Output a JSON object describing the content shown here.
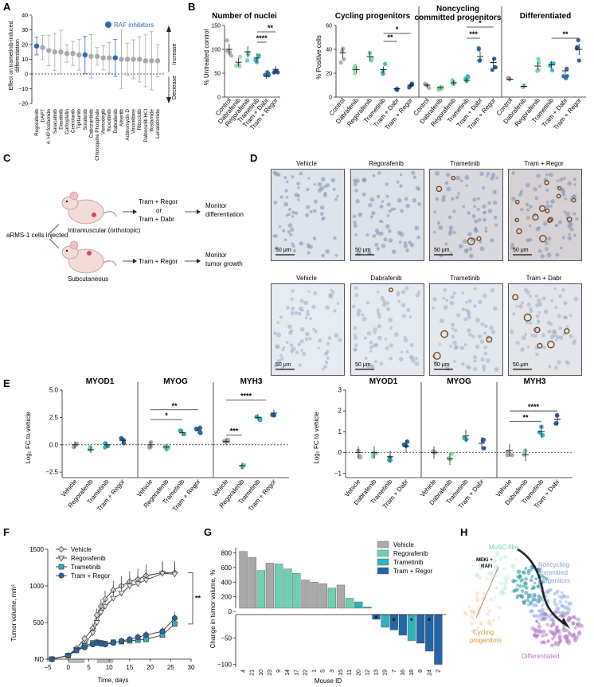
{
  "colors": {
    "gray": "#a9a9a9",
    "light_green": "#8fd8a6",
    "mint": "#6fcfb2",
    "teal": "#2fb2bd",
    "blue": "#2465a8",
    "navy": "#1f4e8c",
    "raf_blue": "#2e68b8",
    "purple": "#8a63b5",
    "orange": "#e2932e"
  },
  "panels": {
    "A": {
      "letter": "A",
      "ylabel_line1": "Effect on trametinib-induced",
      "ylabel_line2": "differentiation",
      "legend": "RAF inhibitors",
      "increase": "Increase",
      "decrease": "Decrease",
      "ticks": [
        "40",
        "30",
        "20",
        "10",
        "0",
        "−10",
        "−20"
      ],
      "drugs": [
        "Regorafenib",
        "DAPT",
        "4- HP fosfamide",
        "Saracatinib",
        "Dasatinib",
        "Carboplatin",
        "Crenolanib",
        "Tipifarnib",
        "Sorafenib",
        "Cabozantinib",
        "Chloroquine Phosphate",
        "Vismodegib",
        "Ruxolitinib",
        "Dabrafenib",
        "Alisertib",
        "Actinomycin D",
        "Vinorelbine",
        "Ribociclib",
        "Palbociclib HCl",
        "Ifosfamide",
        "Lenalidomide"
      ],
      "values": [
        19,
        18,
        16,
        15,
        15,
        14,
        14,
        13,
        13,
        12,
        12,
        11,
        11,
        11,
        10,
        10,
        10,
        10,
        9,
        9,
        9
      ],
      "raf_indices": [
        0,
        8,
        13
      ]
    },
    "B": {
      "letter": "B",
      "sub1": {
        "title": "Number of nuclei",
        "ylabel": "% Untreated control",
        "ticks": [
          "150",
          "100",
          "50",
          "0"
        ],
        "groups": [
          "Control",
          "Dabrafenib",
          "Regorafenib",
          "Trametinib",
          "Tram + Dabr",
          "Tram + Regor"
        ],
        "means": [
          100,
          73,
          95,
          82,
          44,
          58
        ],
        "stars": [
          "****",
          "**"
        ]
      },
      "ylabel2": "% Positive cells",
      "ticks2": [
        "60",
        "40",
        "20",
        "0"
      ],
      "sub2": {
        "title": "Cycling progenitors",
        "groups": [
          "Control",
          "Dabrafenib",
          "Regorafenib",
          "Trametinib",
          "Tram + Dabr",
          "Tram + Regor"
        ],
        "means": [
          37,
          23,
          34,
          23,
          7,
          10
        ],
        "stars": [
          "*",
          "**"
        ]
      },
      "sub3": {
        "title": "Noncycling committed progenitors",
        "title_l1": "Noncycling",
        "title_l2": "committed progenitors",
        "groups": [
          "Control",
          "Dabrafenib",
          "Regorafenib",
          "Trametinib",
          "Tram + Dabr",
          "Tram + Regor"
        ],
        "means": [
          10,
          8,
          12,
          14,
          34,
          29
        ],
        "stars": [
          "*",
          "***"
        ]
      },
      "sub4": {
        "title": "Differentiated",
        "groups": [
          "Control",
          "Dabrafenib",
          "Regorafenib",
          "Trametinib",
          "Tram + Dabr",
          "Tram + Regor"
        ],
        "means": [
          15,
          9,
          26,
          27,
          22,
          40
        ],
        "stars": [
          "**"
        ]
      }
    },
    "C": {
      "letter": "C",
      "injected": "aRMS-1 cells injected",
      "intramuscular": "Intramuscular (orthotopic)",
      "subcutaneous": "Subcutaneous",
      "tx1_l1": "Tram + Regor",
      "tx1_l2": "or",
      "tx1_l3": "Tram + Dabr",
      "tx2": "Tram + Regor",
      "out1_l1": "Monitor",
      "out1_l2": "differentiation",
      "out2_l1": "Monitor",
      "out2_l2": "tumor growth"
    },
    "D": {
      "letter": "D",
      "top": [
        "Vehicle",
        "Regorafenib",
        "Trametinib",
        "Tram + Regor"
      ],
      "bottom": [
        "Vehicle",
        "Dabrafenib",
        "Trametinib",
        "Tram + Dabr"
      ],
      "scale": "50 μm"
    },
    "E": {
      "letter": "E",
      "ylabel": "Log₂ FC to vehicle",
      "genes": [
        "MYOD1",
        "MYOG",
        "MYH3"
      ],
      "left": {
        "ticks": [
          "5.0",
          "2.5",
          "0.0",
          "−2.5"
        ],
        "groups": [
          "Vehicle",
          "Regorafenib",
          "Trametinib",
          "Tram + Regor"
        ],
        "MYOD1": [
          0.0,
          -0.45,
          0.0,
          0.4
        ],
        "MYOG": [
          0.0,
          -0.2,
          1.1,
          1.3
        ],
        "MYH3": [
          0.3,
          -1.9,
          2.5,
          2.9
        ],
        "stars_myog": [
          "**",
          "*"
        ],
        "stars_myh3": [
          "****",
          "***"
        ]
      },
      "right": {
        "ticks": [
          "3",
          "2",
          "1",
          "0",
          "−1"
        ],
        "groups": [
          "Vehicle",
          "Dabrafenib",
          "Trametinib",
          "Tram + Dabr"
        ],
        "MYOD1": [
          0.0,
          0.0,
          -0.2,
          0.3
        ],
        "MYOG": [
          0.0,
          -0.3,
          0.8,
          0.45
        ],
        "MYH3": [
          0.1,
          -0.1,
          1.0,
          1.6
        ],
        "stars_myh3": [
          "****",
          "**"
        ]
      }
    },
    "F": {
      "letter": "F",
      "ylabel": "Tumor volume, mm³",
      "xlabel": "Time, days",
      "yticks": [
        "1500",
        "1000",
        "500",
        "ND"
      ],
      "xticks": [
        "−5",
        "0",
        "5",
        "10",
        "15",
        "20",
        "25",
        "30"
      ],
      "legend": [
        "Vehicle",
        "Regorafenib",
        "Trametinib",
        "Tram + Regor"
      ],
      "days": [
        -4,
        0,
        2,
        4,
        6,
        7,
        8,
        9,
        11,
        13,
        15,
        17,
        19,
        23,
        26
      ],
      "vehicle": [
        0,
        50,
        150,
        280,
        420,
        600,
        720,
        820,
        940,
        1000,
        1060,
        1090,
        1140,
        1180,
        1180
      ],
      "regorafenib": [
        0,
        50,
        130,
        200,
        360,
        500,
        640,
        720,
        830,
        900,
        1000,
        1030,
        1080,
        1170,
        1160
      ],
      "trametinib": [
        0,
        50,
        120,
        180,
        220,
        230,
        220,
        210,
        230,
        240,
        250,
        260,
        270,
        330,
        480
      ],
      "tram_regor": [
        0,
        50,
        120,
        160,
        200,
        220,
        210,
        200,
        220,
        250,
        270,
        300,
        330,
        380,
        560
      ],
      "sig": "**"
    },
    "G": {
      "letter": "G",
      "ylabel": "Change in tumor volume, %",
      "xlabel": "Mouse ID",
      "yticks": [
        "800",
        "600",
        "400",
        "200",
        "0",
        "−50",
        "−100"
      ],
      "legend": [
        "Vehicle",
        "Regorafenib",
        "Trametinib",
        "Tram + Regor"
      ],
      "ids": [
        "4",
        "21",
        "10",
        "23",
        "9",
        "14",
        "17",
        "22",
        "1",
        "5",
        "3",
        "15",
        "11",
        "20",
        "12",
        "13",
        "19",
        "7",
        "16",
        "18",
        "8",
        "24",
        "2"
      ],
      "values": [
        820,
        740,
        560,
        660,
        650,
        580,
        520,
        430,
        400,
        380,
        320,
        360,
        180,
        130,
        60,
        -15,
        -30,
        -35,
        -45,
        -55,
        -60,
        -75,
        -100
      ],
      "groups": [
        0,
        0,
        1,
        0,
        1,
        1,
        1,
        0,
        0,
        0,
        1,
        0,
        1,
        2,
        2,
        3,
        2,
        3,
        3,
        2,
        3,
        3,
        3
      ],
      "star_ids": [
        "13",
        "7",
        "18",
        "24"
      ]
    },
    "H": {
      "letter": "H",
      "musc": "MuSC-like",
      "meki": "MEKi +",
      "rafi": "RAFi",
      "ncp1": "Noncycling",
      "ncp2": "committed",
      "ncp3": "progenitors",
      "cyc1": "Cycling",
      "cyc2": "progenitors",
      "diff": "Differentiated"
    }
  }
}
